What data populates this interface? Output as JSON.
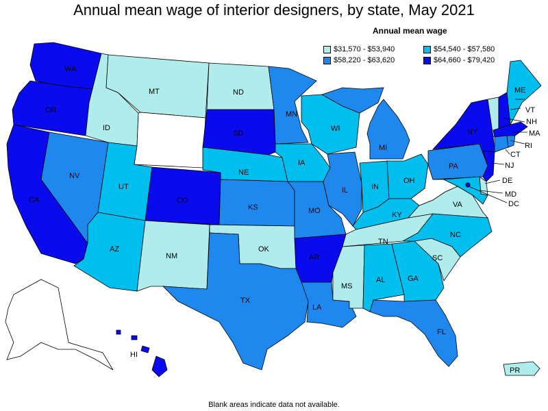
{
  "title": "Annual mean wage of interior designers, by state, May 2021",
  "legend": {
    "title": "Annual mean wage",
    "bins": [
      {
        "label": "$31,570 - $53,940",
        "color": "#b0ecec"
      },
      {
        "label": "$54,540 - $57,580",
        "color": "#00bfef"
      },
      {
        "label": "$58,220 - $63,620",
        "color": "#1e88ef"
      },
      {
        "label": "$64,660 - $79,420",
        "color": "#0a0aef"
      }
    ]
  },
  "no_data_color": "#ffffff",
  "footnote": "Blank areas indicate data not available.",
  "states": {
    "WA": 3,
    "OR": 3,
    "CA": 3,
    "NV": 2,
    "ID": 0,
    "MT": 0,
    "WY": -1,
    "UT": 1,
    "AZ": 1,
    "CO": 3,
    "NM": 0,
    "ND": 0,
    "SD": 3,
    "NE": 1,
    "KS": 2,
    "OK": 0,
    "TX": 2,
    "MN": 2,
    "IA": 1,
    "MO": 2,
    "AR": 3,
    "LA": 2,
    "WI": 1,
    "IL": 2,
    "MI": 2,
    "IN": 1,
    "OH": 1,
    "KY": 1,
    "TN": 0,
    "MS": 0,
    "AL": 1,
    "GA": 1,
    "FL": 2,
    "SC": 0,
    "NC": 1,
    "VA": 0,
    "WV": -1,
    "PA": 2,
    "NY": 3,
    "VT": 0,
    "NH": 3,
    "ME": 1,
    "MA": 3,
    "RI": 2,
    "CT": 2,
    "NJ": 3,
    "DE": 0,
    "MD": 1,
    "DC": 3,
    "AK": -1,
    "HI": 3,
    "PR": 0
  },
  "state_labels": {
    "WA": "WA",
    "OR": "OR",
    "CA": "CA",
    "NV": "NV",
    "ID": "ID",
    "MT": "MT",
    "UT": "UT",
    "AZ": "AZ",
    "CO": "CO",
    "NM": "NM",
    "ND": "ND",
    "SD": "SD",
    "NE": "NE",
    "KS": "KS",
    "OK": "OK",
    "TX": "TX",
    "MN": "MN",
    "IA": "IA",
    "MO": "MO",
    "AR": "AR",
    "LA": "LA",
    "WI": "WI",
    "IL": "IL",
    "MI": "MI",
    "IN": "IN",
    "OH": "OH",
    "KY": "KY",
    "TN": "TN",
    "MS": "MS",
    "AL": "AL",
    "GA": "GA",
    "FL": "FL",
    "SC": "SC",
    "NC": "NC",
    "VA": "VA",
    "PA": "PA",
    "NY": "NY",
    "ME": "ME",
    "VT": "VT",
    "NH": "NH",
    "MA": "MA",
    "RI": "RI",
    "CT": "CT",
    "NJ": "NJ",
    "DE": "DE",
    "MD": "MD",
    "DC": "DC",
    "HI": "HI",
    "PR": "PR"
  }
}
